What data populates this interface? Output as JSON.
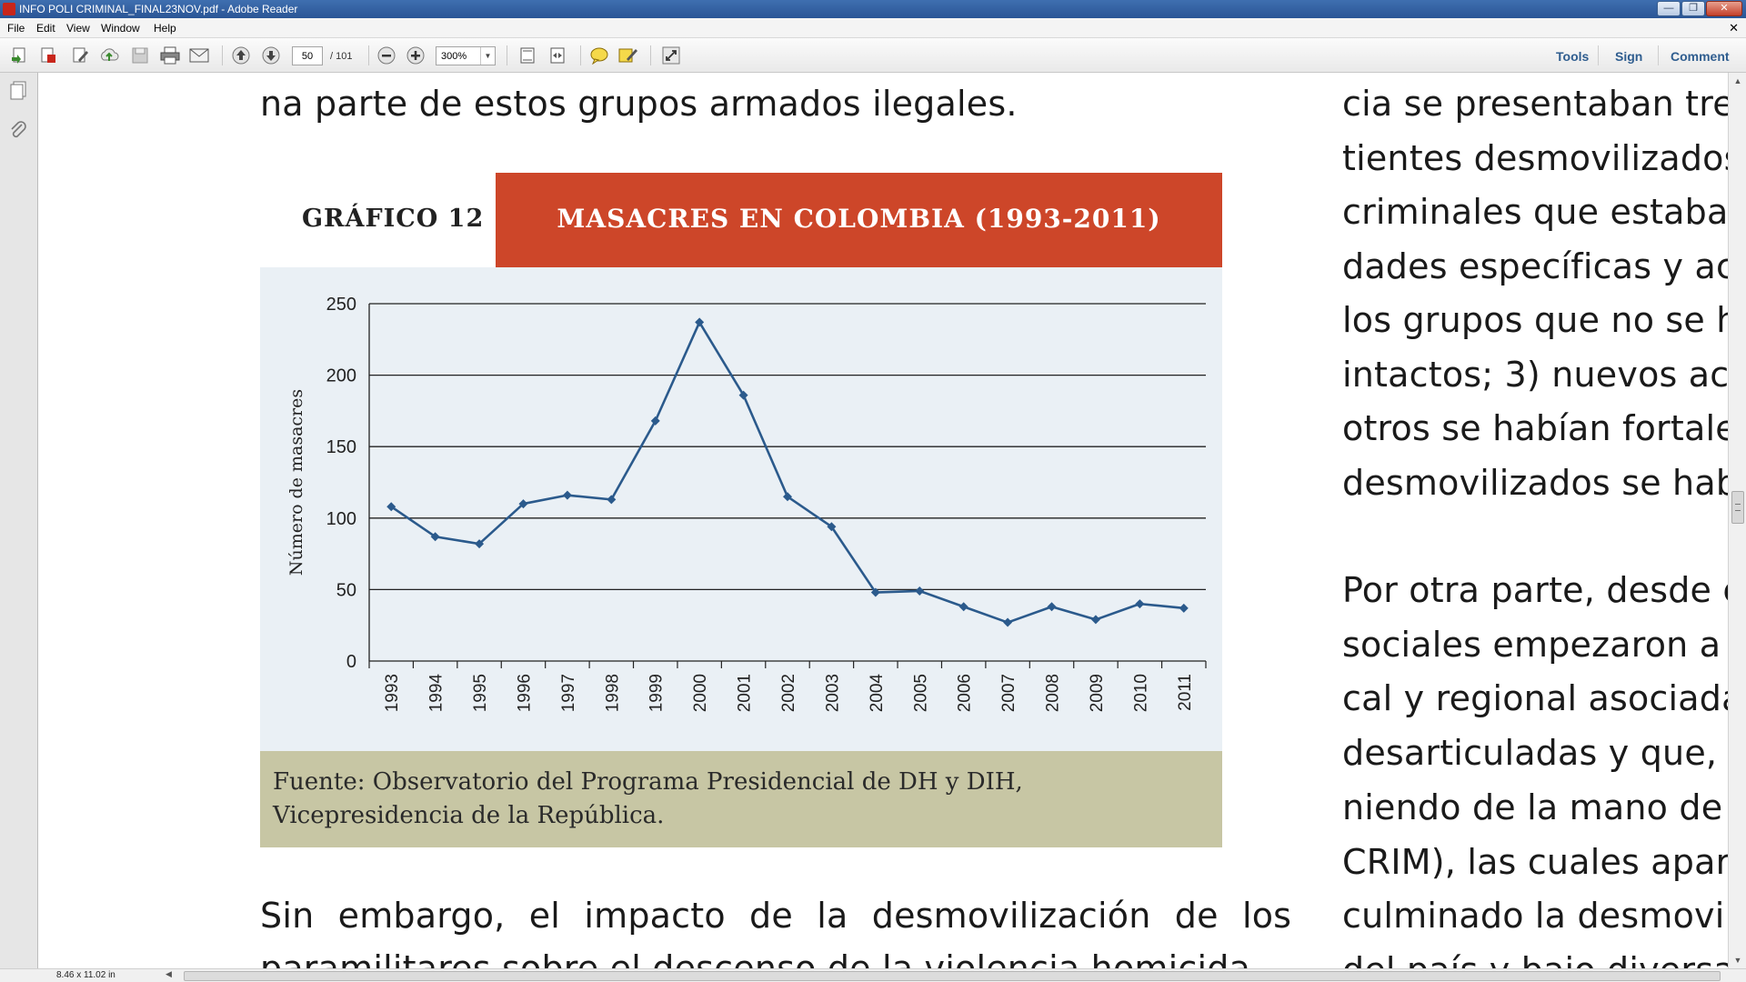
{
  "window": {
    "title": "INFO POLI CRIMINAL_FINAL23NOV.pdf - Adobe Reader",
    "minimize": "—",
    "maximize": "❐",
    "close": "✕"
  },
  "menu": {
    "items": [
      "File",
      "Edit",
      "View",
      "Window",
      "Help"
    ],
    "close_doc": "✕"
  },
  "toolbar": {
    "current_page": "50",
    "total_pages": "/ 101",
    "zoom": "300%",
    "links": [
      "Tools",
      "Sign",
      "Comment"
    ],
    "icons": [
      "create-pdf-icon",
      "convert-pdf-icon",
      "edit-icon",
      "upload-cloud-icon",
      "save-icon",
      "print-icon",
      "email-icon",
      "previous-page-icon",
      "next-page-icon",
      "zoom-out-icon",
      "zoom-in-icon",
      "fit-page-icon",
      "fit-width-icon",
      "sticky-note-icon",
      "highlight-icon",
      "full-screen-icon"
    ]
  },
  "leftnav": {
    "icons": [
      "page-thumbnails-icon",
      "attachments-icon"
    ]
  },
  "document": {
    "left_column": {
      "top_line": "na parte de estos grupos armados ilegales.",
      "bottom_line": "Sin embargo, el impacto de la desmovilización de los",
      "cut_line": "paramilitares sobre el descenso de la violencia homicida"
    },
    "right_column": {
      "paragraph1": [
        "cia se presentaban tre",
        "tientes desmovilizados",
        "criminales que estaban",
        "dades específicas y ac",
        "los grupos que no se h",
        "intactos; 3) nuevos ac",
        "otros se habían fortalec",
        "desmovilizados se habí"
      ],
      "paragraph2": [
        "Por otra parte, desde el",
        "sociales empezaron a de",
        "cal y regional asociadas",
        "desarticuladas y que, po",
        "niendo de la mano de la",
        "CRIM), las cuales apare",
        "culminado la desmoviliz",
        "del país y bajo diversas"
      ]
    },
    "figure": {
      "label": "GRÁFICO 12",
      "title": "MASACRES EN COLOMBIA (1993-2011)",
      "source": "Fuente: Observatorio del Programa Presidencial de DH y DIH, Vicepresidencia de la República."
    }
  },
  "chart_data": {
    "type": "line",
    "title": "MASACRES EN COLOMBIA (1993-2011)",
    "xlabel": "",
    "ylabel": "Número de masacres",
    "categories": [
      "1993",
      "1994",
      "1995",
      "1996",
      "1997",
      "1998",
      "1999",
      "2000",
      "2001",
      "2002",
      "2003",
      "2004",
      "2005",
      "2006",
      "2007",
      "2008",
      "2009",
      "2010",
      "2011"
    ],
    "series": [
      {
        "values": [
          108,
          87,
          82,
          110,
          116,
          113,
          168,
          237,
          186,
          115,
          94,
          48,
          49,
          38,
          27,
          38,
          29,
          40,
          37
        ]
      }
    ],
    "ylim": [
      0,
      250
    ],
    "yticks": [
      0,
      50,
      100,
      150,
      200,
      250
    ],
    "grid": true,
    "line_color": "#2b5a8c",
    "marker": "diamond"
  },
  "statusbar": {
    "page_size": "8.46 x 11.02 in"
  },
  "colors": {
    "banner": "#cd4629",
    "chart_background": "#eaf0f5",
    "source_background": "#c7c6a4",
    "toolbar_link": "#2f5d8f"
  }
}
